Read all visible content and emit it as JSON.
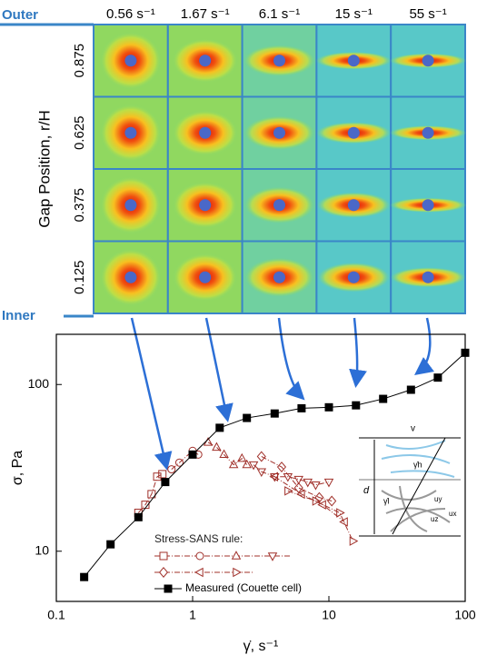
{
  "figure": {
    "column_labels": [
      "0.56 s⁻¹",
      "1.67 s⁻¹",
      "6.1 s⁻¹",
      "15 s⁻¹",
      "55 s⁻¹"
    ],
    "row_labels": [
      "0.875",
      "0.625",
      "0.375",
      "0.125"
    ],
    "y_label": "Gap Position, r/H",
    "outer_label": "Outer",
    "inner_label": "Inner",
    "inset_labels": [
      "v",
      "d",
      "γ̇h",
      "γ̇l",
      "uy",
      "ux",
      "uz"
    ]
  },
  "chart_data": {
    "type": "line",
    "xlabel": "γ̇, s⁻¹",
    "ylabel": "σ, Pa",
    "xlim": [
      0.1,
      100
    ],
    "ylim": [
      5,
      200
    ],
    "xticks": [
      0.1,
      1,
      10,
      100
    ],
    "yticks": [
      10,
      100
    ],
    "log_x": true,
    "log_y": true,
    "legend_title": "Stress-SANS rule:",
    "series": [
      {
        "color": "#a0302a",
        "marker": "square",
        "filled": false,
        "x": [
          0.4,
          0.45,
          0.5,
          0.55,
          0.6
        ],
        "values": [
          17,
          19,
          22,
          28,
          29
        ]
      },
      {
        "color": "#a0302a",
        "marker": "circle",
        "filled": false,
        "x": [
          0.7,
          0.8,
          1.0,
          1.1
        ],
        "values": [
          31,
          34,
          40,
          38
        ]
      },
      {
        "color": "#a0302a",
        "marker": "triangle-up",
        "filled": false,
        "x": [
          1.3,
          1.5,
          1.7,
          2,
          2.3,
          2.5
        ],
        "values": [
          45,
          42,
          38,
          33,
          36,
          33
        ]
      },
      {
        "color": "#a0302a",
        "marker": "triangle-down",
        "filled": false,
        "x": [
          2.8,
          3.2,
          4,
          5,
          6,
          7,
          8,
          10
        ],
        "values": [
          33,
          30,
          28,
          28,
          27,
          26,
          25,
          26
        ]
      },
      {
        "color": "#a0302a",
        "marker": "diamond",
        "filled": false,
        "x": [
          3.2,
          4.5,
          6,
          8.5,
          10.5
        ],
        "values": [
          37,
          32,
          24,
          21,
          20
        ]
      },
      {
        "color": "#a0302a",
        "marker": "triangle-left",
        "filled": false,
        "x": [
          4,
          6.3,
          9,
          13
        ],
        "values": [
          28,
          22,
          19,
          15
        ]
      },
      {
        "color": "#a0302a",
        "marker": "triangle-right",
        "filled": false,
        "x": [
          5,
          8,
          12,
          15
        ],
        "values": [
          23,
          20,
          17,
          11.5
        ]
      },
      {
        "name": "Measured (Couette cell)",
        "color": "#000000",
        "marker": "square",
        "filled": true,
        "x": [
          0.16,
          0.25,
          0.4,
          0.63,
          1,
          1.58,
          2.5,
          4,
          6.3,
          10,
          15.8,
          25,
          40,
          63,
          100
        ],
        "values": [
          7,
          11,
          16,
          26,
          38,
          55,
          63,
          67,
          72,
          73,
          75,
          82,
          93,
          110,
          155
        ]
      }
    ]
  }
}
